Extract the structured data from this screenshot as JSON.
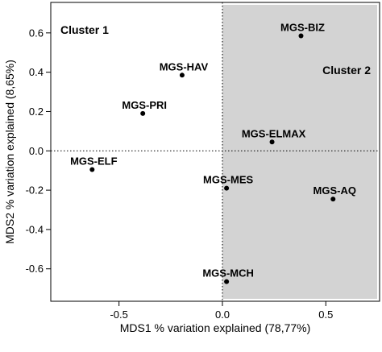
{
  "chart_data": {
    "type": "scatter",
    "title": "",
    "xlabel": "MDS1 % variation explained (78,77%)",
    "ylabel": "MDS2 % variation explained (8,65%)",
    "xlim": [
      -0.83,
      0.76
    ],
    "ylim": [
      -0.765,
      0.755
    ],
    "xticks": [
      -0.5,
      0.0,
      0.5
    ],
    "xtick_labels": [
      "-0.5",
      "0.0",
      "0.5"
    ],
    "yticks": [
      0.6,
      0.4,
      0.2,
      0.0,
      -0.2,
      -0.4,
      -0.6
    ],
    "ytick_labels": [
      "0.6",
      "0.4",
      "0.2",
      "0.0",
      "-0.2",
      "-0.4",
      "-0.6"
    ],
    "grid": false,
    "reference_lines": {
      "x": 0.0,
      "y": 0.0,
      "style": "dotted"
    },
    "shaded_region": {
      "x_from": 0.0,
      "color": "#d3d3d3"
    },
    "clusters": [
      {
        "label": "Cluster 1",
        "position": "top-left"
      },
      {
        "label": "Cluster 2",
        "position": "top-right"
      }
    ],
    "points": [
      {
        "label": "MGS-BIZ",
        "x": 0.38,
        "y": 0.585
      },
      {
        "label": "MGS-HAV",
        "x": -0.195,
        "y": 0.385
      },
      {
        "label": "MGS-PRI",
        "x": -0.385,
        "y": 0.19
      },
      {
        "label": "MGS-ELMAX",
        "x": 0.24,
        "y": 0.045
      },
      {
        "label": "MGS-ELF",
        "x": -0.63,
        "y": -0.095
      },
      {
        "label": "MGS-MES",
        "x": 0.02,
        "y": -0.19
      },
      {
        "label": "MGS-AQ",
        "x": 0.535,
        "y": -0.245
      },
      {
        "label": "MGS-MCH",
        "x": 0.02,
        "y": -0.665
      }
    ],
    "colors": {
      "point": "#000000",
      "shade": "#d3d3d3",
      "frame": "#000000"
    }
  }
}
